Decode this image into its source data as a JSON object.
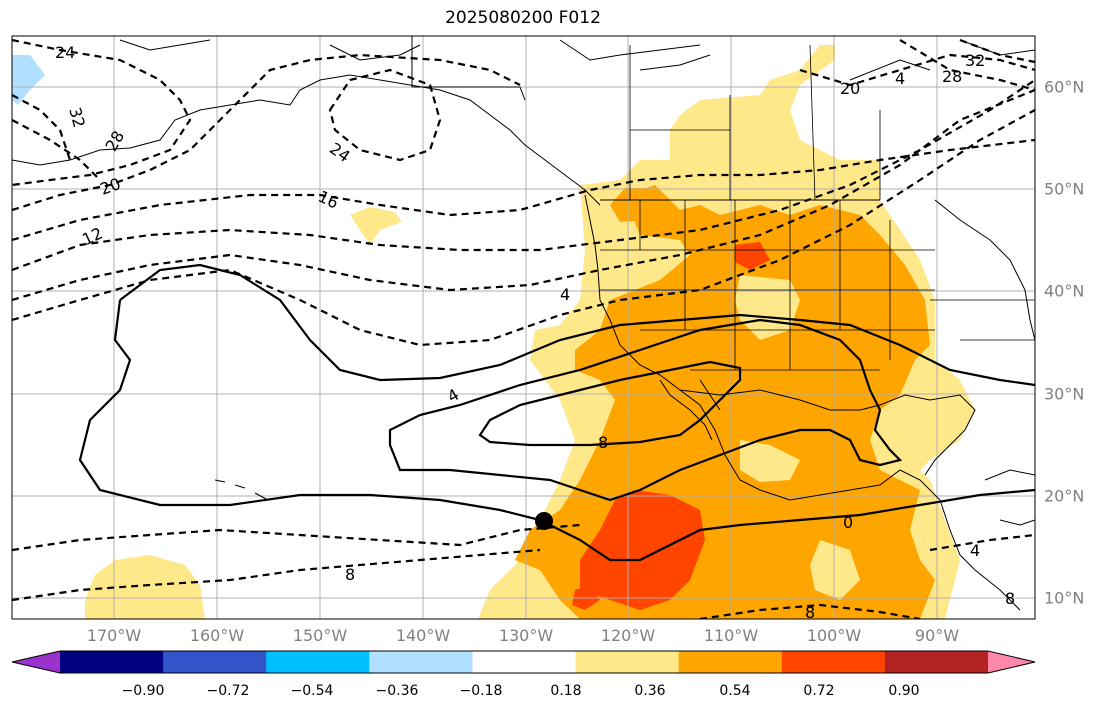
{
  "title": "2025080200 F012",
  "lon_ticks": [
    "170°W",
    "160°W",
    "150°W",
    "140°W",
    "130°W",
    "120°W",
    "110°W",
    "100°W",
    "90°W"
  ],
  "lat_ticks": [
    "60°N",
    "50°N",
    "40°N",
    "30°N",
    "20°N",
    "10°N"
  ],
  "colorbar": {
    "labels": [
      "−0.90",
      "−0.72",
      "−0.54",
      "−0.36",
      "−0.18",
      "0.18",
      "0.36",
      "0.54",
      "0.72",
      "0.90"
    ],
    "colors": [
      "#9933cc",
      "#000080",
      "#3355cc",
      "#00bfff",
      "#b0e0ff",
      "#ffffff",
      "#ffe88a",
      "#ffa500",
      "#ff4500",
      "#b22222",
      "#ff88aa"
    ]
  },
  "contour_labels": [
    "24",
    "32",
    "28",
    "20",
    "12",
    "24",
    "16",
    "20",
    "4",
    "28",
    "32",
    "4",
    "4",
    "8",
    "0",
    "8",
    "8",
    "4",
    "8"
  ],
  "map": {
    "colors": {
      "land_outline": "#000000",
      "grid": "#b0b0b0",
      "shade_low": "#ffe88a",
      "shade_mid": "#ffa500",
      "shade_high": "#ff4500",
      "shade_neg": "#b0e0ff"
    },
    "marker": "storm-center-dot"
  }
}
